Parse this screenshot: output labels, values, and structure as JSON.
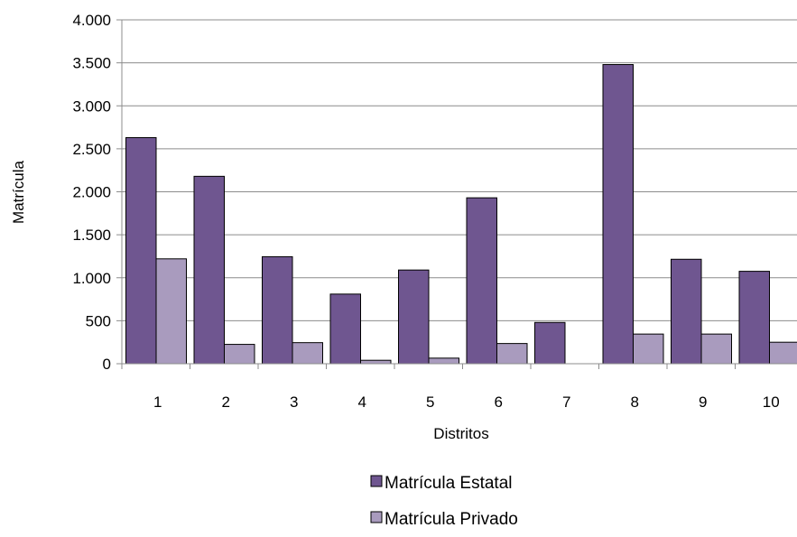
{
  "chart_data": {
    "type": "bar",
    "title": "",
    "xlabel": "Distritos",
    "ylabel": "Matrícula",
    "categories": [
      "1",
      "2",
      "3",
      "4",
      "5",
      "6",
      "7",
      "8",
      "9",
      "10"
    ],
    "series": [
      {
        "name": "Matrícula Estatal",
        "color": "#6f5690",
        "values": [
          2630,
          2180,
          1245,
          810,
          1090,
          1930,
          480,
          3480,
          1215,
          1075
        ]
      },
      {
        "name": "Matrícula Privado",
        "color": "#a99bbe",
        "values": [
          1220,
          225,
          245,
          40,
          65,
          235,
          0,
          345,
          345,
          250
        ]
      }
    ],
    "ylim": [
      0,
      4000
    ],
    "y_ticks": [
      {
        "value": 0,
        "label": "0"
      },
      {
        "value": 500,
        "label": "500"
      },
      {
        "value": 1000,
        "label": "1.000"
      },
      {
        "value": 1500,
        "label": "1.500"
      },
      {
        "value": 2000,
        "label": "2.000"
      },
      {
        "value": 2500,
        "label": "2.500"
      },
      {
        "value": 3000,
        "label": "3.000"
      },
      {
        "value": 3500,
        "label": "3.500"
      },
      {
        "value": 4000,
        "label": "4.000"
      }
    ],
    "grid": true,
    "legend_position": "bottom"
  }
}
